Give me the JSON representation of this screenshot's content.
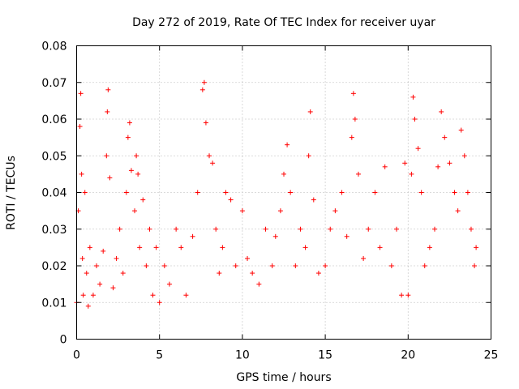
{
  "chart_data": {
    "type": "scatter",
    "title": "Day 272 of 2019, Rate Of TEC Index for receiver uyar",
    "xlabel": "GPS time / hours",
    "ylabel": "ROTI / TECUs",
    "xlim": [
      0,
      25
    ],
    "ylim": [
      0,
      0.08
    ],
    "xticks": [
      0,
      5,
      10,
      15,
      20,
      25
    ],
    "xtick_labels": [
      "0",
      "5",
      "10",
      "15",
      "20",
      "25"
    ],
    "yticks": [
      0,
      0.01,
      0.02,
      0.03,
      0.04,
      0.05,
      0.06,
      0.07,
      0.08
    ],
    "ytick_labels": [
      "0",
      "0.01",
      "0.02",
      "0.03",
      "0.04",
      "0.05",
      "0.06",
      "0.07",
      "0.08"
    ],
    "grid": true,
    "marker": "+",
    "color": "#ff0000",
    "series": [
      {
        "name": "ROTI",
        "x": [
          0.0,
          0.1,
          0.2,
          0.25,
          0.3,
          0.35,
          0.4,
          0.5,
          0.6,
          0.7,
          0.8,
          1.0,
          1.2,
          1.4,
          1.6,
          1.8,
          1.85,
          1.9,
          2.0,
          2.2,
          2.4,
          2.6,
          2.8,
          3.0,
          3.1,
          3.2,
          3.3,
          3.5,
          3.6,
          3.7,
          3.8,
          4.0,
          4.2,
          4.4,
          4.6,
          4.8,
          5.0,
          5.3,
          5.6,
          6.0,
          6.3,
          6.6,
          7.0,
          7.3,
          7.6,
          7.7,
          7.8,
          8.0,
          8.2,
          8.4,
          8.6,
          8.8,
          9.0,
          9.3,
          9.6,
          10.0,
          10.3,
          10.6,
          11.0,
          11.4,
          11.8,
          12.0,
          12.3,
          12.5,
          12.7,
          12.9,
          13.2,
          13.5,
          13.8,
          14.0,
          14.1,
          14.3,
          14.6,
          15.0,
          15.3,
          15.6,
          16.0,
          16.3,
          16.6,
          16.7,
          16.8,
          17.0,
          17.3,
          17.6,
          18.0,
          18.3,
          18.6,
          19.0,
          19.3,
          19.6,
          19.8,
          20.0,
          20.2,
          20.3,
          20.4,
          20.6,
          20.8,
          21.0,
          21.3,
          21.6,
          21.8,
          22.0,
          22.2,
          22.5,
          22.8,
          23.0,
          23.2,
          23.4,
          23.6,
          23.8,
          24.0,
          24.1
        ],
        "y": [
          0.01,
          0.035,
          0.058,
          0.067,
          0.045,
          0.022,
          0.012,
          0.04,
          0.018,
          0.009,
          0.025,
          0.012,
          0.02,
          0.015,
          0.024,
          0.05,
          0.062,
          0.068,
          0.044,
          0.014,
          0.022,
          0.03,
          0.018,
          0.04,
          0.055,
          0.059,
          0.046,
          0.035,
          0.05,
          0.045,
          0.025,
          0.038,
          0.02,
          0.03,
          0.012,
          0.025,
          0.01,
          0.02,
          0.015,
          0.03,
          0.025,
          0.012,
          0.028,
          0.04,
          0.068,
          0.07,
          0.059,
          0.05,
          0.048,
          0.03,
          0.018,
          0.025,
          0.04,
          0.038,
          0.02,
          0.035,
          0.022,
          0.018,
          0.015,
          0.03,
          0.02,
          0.028,
          0.035,
          0.045,
          0.053,
          0.04,
          0.02,
          0.03,
          0.025,
          0.05,
          0.062,
          0.038,
          0.018,
          0.02,
          0.03,
          0.035,
          0.04,
          0.028,
          0.055,
          0.067,
          0.06,
          0.045,
          0.022,
          0.03,
          0.04,
          0.025,
          0.047,
          0.02,
          0.03,
          0.012,
          0.048,
          0.012,
          0.045,
          0.066,
          0.06,
          0.052,
          0.04,
          0.02,
          0.025,
          0.03,
          0.047,
          0.062,
          0.055,
          0.048,
          0.04,
          0.035,
          0.057,
          0.05,
          0.04,
          0.03,
          0.02,
          0.025
        ]
      }
    ]
  }
}
